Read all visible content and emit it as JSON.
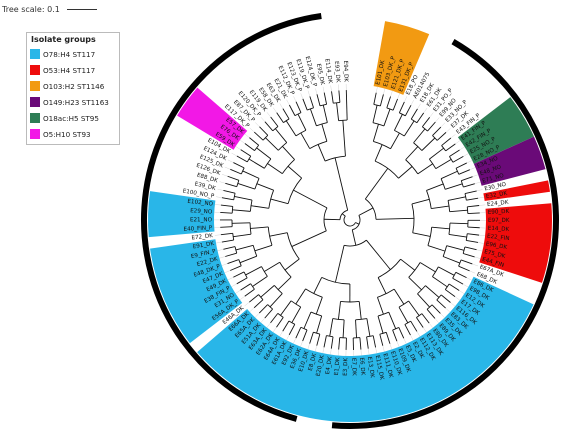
{
  "scale_label": "Tree scale: 0.1",
  "legend": {
    "title": "Isolate groups",
    "items": [
      {
        "label": "O78:H4 ST117",
        "color": "#29b6e8"
      },
      {
        "label": "O53:H4 ST117",
        "color": "#ee0c0c"
      },
      {
        "label": "O103:H2 ST1146",
        "color": "#f29a12"
      },
      {
        "label": "O149:H23 ST1163",
        "color": "#6a0a78"
      },
      {
        "label": "O18ac:H5 ST95",
        "color": "#2e7d55"
      },
      {
        "label": "O5:H10 ST93",
        "color": "#f218e6"
      }
    ]
  },
  "leaves": [
    {
      "label": "E101_DK",
      "group": 2
    },
    {
      "label": "E103_DK_P",
      "group": 2
    },
    {
      "label": "E121_DK_P",
      "group": 2
    },
    {
      "label": "E131_DK_P",
      "group": 2
    },
    {
      "label": "E18_PO",
      "group": -1
    },
    {
      "label": "AE014075",
      "group": -1
    },
    {
      "label": "E18_DK",
      "group": -1
    },
    {
      "label": "E61_DK",
      "group": -1
    },
    {
      "label": "E31_PO_P",
      "group": -1
    },
    {
      "label": "E99_NO",
      "group": -1
    },
    {
      "label": "E33_NO_P",
      "group": -1
    },
    {
      "label": "E37_DK",
      "group": -1
    },
    {
      "label": "E43_FIN_P",
      "group": -1
    },
    {
      "label": "E41_FIN_P",
      "group": 4
    },
    {
      "label": "E42_FIN_P",
      "group": 4
    },
    {
      "label": "E25_NO_P",
      "group": 4
    },
    {
      "label": "E28_NO_P",
      "group": 4
    },
    {
      "label": "E34_NO",
      "group": 3
    },
    {
      "label": "E48_NO",
      "group": 3
    },
    {
      "label": "E71_NO",
      "group": 3
    },
    {
      "label": "E30_NO",
      "group": -1
    },
    {
      "label": "E32_DK",
      "group": 1
    },
    {
      "label": "E24_DK",
      "group": -1
    },
    {
      "label": "E90_DK",
      "group": 1
    },
    {
      "label": "E97_DK",
      "group": 1
    },
    {
      "label": "E14_DK",
      "group": 1
    },
    {
      "label": "E22_FIN",
      "group": 1
    },
    {
      "label": "E96_DK",
      "group": 1
    },
    {
      "label": "E75_DK",
      "group": 1
    },
    {
      "label": "E44_FIN",
      "group": 1
    },
    {
      "label": "E67A_DK",
      "group": -1
    },
    {
      "label": "E68_DK",
      "group": -1
    },
    {
      "label": "E86_DK",
      "group": 0
    },
    {
      "label": "E98_DK",
      "group": 0
    },
    {
      "label": "E12_DK",
      "group": 0
    },
    {
      "label": "E17_DK",
      "group": 0
    },
    {
      "label": "E116_DK",
      "group": 0
    },
    {
      "label": "E83_DK",
      "group": 0
    },
    {
      "label": "E35_DK",
      "group": 0
    },
    {
      "label": "E89_DK",
      "group": 0
    },
    {
      "label": "E80_DK",
      "group": 0
    },
    {
      "label": "E113_DK",
      "group": 0
    },
    {
      "label": "E112_DK",
      "group": 0
    },
    {
      "label": "E2_DK",
      "group": 0
    },
    {
      "label": "E5_DK",
      "group": 0
    },
    {
      "label": "E109_DK",
      "group": 0
    },
    {
      "label": "E110_DK",
      "group": 0
    },
    {
      "label": "E111_DK",
      "group": 0
    },
    {
      "label": "E115_DK",
      "group": 0
    },
    {
      "label": "E13_DK",
      "group": 0
    },
    {
      "label": "E6_DK",
      "group": 0
    },
    {
      "label": "E7_DK",
      "group": 0
    },
    {
      "label": "E3_DK",
      "group": 0
    },
    {
      "label": "E1_DK",
      "group": 0
    },
    {
      "label": "E4_DK",
      "group": 0
    },
    {
      "label": "E20_DK",
      "group": 0
    },
    {
      "label": "E8_DK",
      "group": 0
    },
    {
      "label": "E10_DK",
      "group": 0
    },
    {
      "label": "E36_DK",
      "group": 0
    },
    {
      "label": "E92_DK",
      "group": 0
    },
    {
      "label": "E61A_DK",
      "group": 0
    },
    {
      "label": "E64A_DK",
      "group": 0
    },
    {
      "label": "E62A_DK",
      "group": 0
    },
    {
      "label": "E63A_DK",
      "group": 0
    },
    {
      "label": "E51A_DK",
      "group": 0
    },
    {
      "label": "E65A_DK",
      "group": 0
    },
    {
      "label": "E66A_DK",
      "group": 0
    },
    {
      "label": "E46A_DK",
      "group": -1
    },
    {
      "label": "E56A_DK_P",
      "group": 0
    },
    {
      "label": "E31_NO",
      "group": 0
    },
    {
      "label": "E38_FIN_P",
      "group": 0
    },
    {
      "label": "E49_DK",
      "group": 0
    },
    {
      "label": "E47_DK",
      "group": 0
    },
    {
      "label": "E48_DK_P",
      "group": 0
    },
    {
      "label": "E22_DK",
      "group": 0
    },
    {
      "label": "E9_FIN_P",
      "group": 0
    },
    {
      "label": "E91_DK",
      "group": 0
    },
    {
      "label": "E72_DK",
      "group": -1
    },
    {
      "label": "E40_FIN_P",
      "group": 0
    },
    {
      "label": "E21_NO",
      "group": 0
    },
    {
      "label": "E29_NO",
      "group": 0
    },
    {
      "label": "E102_NO",
      "group": 0
    },
    {
      "label": "E100_NO_P",
      "group": -1
    },
    {
      "label": "E39_DK",
      "group": -1
    },
    {
      "label": "E88_DK",
      "group": -1
    },
    {
      "label": "E126_DK",
      "group": -1
    },
    {
      "label": "E125_DK",
      "group": -1
    },
    {
      "label": "E124_DK",
      "group": -1
    },
    {
      "label": "E104_DK",
      "group": -1
    },
    {
      "label": "E59_DK",
      "group": 5
    },
    {
      "label": "E76_DK",
      "group": 5
    },
    {
      "label": "E57_DK",
      "group": 5
    },
    {
      "label": "E117_DK_P",
      "group": -1
    },
    {
      "label": "E87_DK_P",
      "group": -1
    },
    {
      "label": "E120_DK_P",
      "group": -1
    },
    {
      "label": "E119_DK",
      "group": -1
    },
    {
      "label": "E58_DK",
      "group": -1
    },
    {
      "label": "E63_DK",
      "group": -1
    },
    {
      "label": "E21_DK",
      "group": -1
    },
    {
      "label": "E112_DK_P",
      "group": -1
    },
    {
      "label": "E123_DK_P",
      "group": -1
    },
    {
      "label": "E119_DK_P",
      "group": -1
    },
    {
      "label": "E124_DK_P",
      "group": -1
    },
    {
      "label": "E95_DK",
      "group": -1
    },
    {
      "label": "E114_DK",
      "group": -1
    },
    {
      "label": "E93_DK",
      "group": -1
    },
    {
      "label": "E94_DK",
      "group": -1
    }
  ]
}
